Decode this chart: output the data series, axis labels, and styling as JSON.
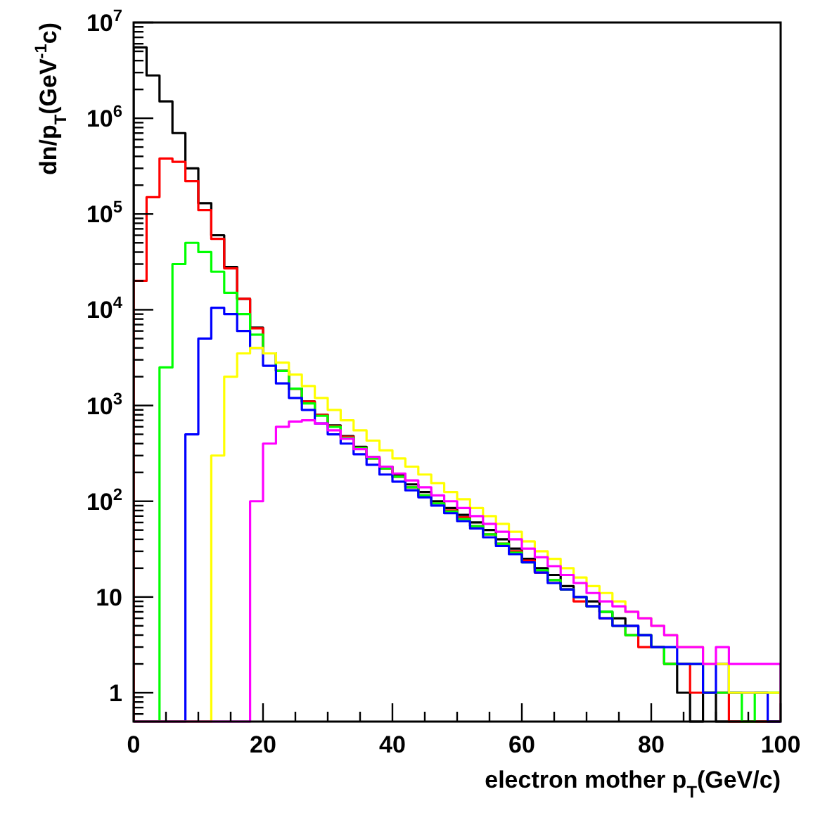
{
  "chart_data": {
    "type": "histogram",
    "xlabel": "electron mother p$_{T}$(GeV/c)",
    "ylabel": "dn/p$_{T}$(GeV$^{-1}$c)",
    "log": "y",
    "grid": false,
    "bins": [
      0,
      2,
      4,
      6,
      8,
      10,
      12,
      14,
      16,
      18,
      20,
      22,
      24,
      26,
      28,
      30,
      32,
      34,
      36,
      38,
      40,
      42,
      44,
      46,
      48,
      50,
      52,
      54,
      56,
      58,
      60,
      62,
      64,
      66,
      68,
      70,
      72,
      74,
      76,
      78,
      80,
      82,
      84,
      86,
      88,
      90,
      92,
      94,
      96,
      98,
      100
    ],
    "xlim": [
      0,
      100
    ],
    "xticks": [
      0,
      {
        "value": 5,
        "label": null
      },
      {
        "value": 10,
        "label": null
      },
      {
        "value": 15,
        "label": null
      },
      20,
      {
        "value": 25,
        "label": null
      },
      {
        "value": 30,
        "label": null
      },
      {
        "value": 35,
        "label": null
      },
      40,
      {
        "value": 45,
        "label": null
      },
      {
        "value": 50,
        "label": null
      },
      {
        "value": 55,
        "label": null
      },
      60,
      {
        "value": 65,
        "label": null
      },
      {
        "value": 70,
        "label": null
      },
      {
        "value": 75,
        "label": null
      },
      80,
      {
        "value": 85,
        "label": null
      },
      {
        "value": 90,
        "label": null
      },
      {
        "value": 95,
        "label": null
      },
      100
    ],
    "ylim": [
      0.5,
      10000000
    ],
    "yticks": [
      {
        "value": 0.6,
        "label": null
      },
      {
        "value": 0.7,
        "label": null
      },
      {
        "value": 0.8,
        "label": null
      },
      {
        "value": 0.9,
        "label": null
      },
      1,
      {
        "value": 2,
        "label": null
      },
      {
        "value": 3,
        "label": null
      },
      {
        "value": 4,
        "label": null
      },
      {
        "value": 5,
        "label": null
      },
      {
        "value": 6,
        "label": null
      },
      {
        "value": 7,
        "label": null
      },
      {
        "value": 8,
        "label": null
      },
      {
        "value": 9,
        "label": null
      },
      10,
      {
        "value": 20,
        "label": null
      },
      {
        "value": 30,
        "label": null
      },
      {
        "value": 40,
        "label": null
      },
      {
        "value": 50,
        "label": null
      },
      {
        "value": 60,
        "label": null
      },
      {
        "value": 70,
        "label": null
      },
      {
        "value": 80,
        "label": null
      },
      {
        "value": 90,
        "label": null
      },
      {
        "value": 100,
        "label": "10$^{2}$"
      },
      {
        "value": 200,
        "label": null
      },
      {
        "value": 300,
        "label": null
      },
      {
        "value": 400,
        "label": null
      },
      {
        "value": 500,
        "label": null
      },
      {
        "value": 600,
        "label": null
      },
      {
        "value": 700,
        "label": null
      },
      {
        "value": 800,
        "label": null
      },
      {
        "value": 900,
        "label": null
      },
      {
        "value": 1000,
        "label": "10$^{3}$"
      },
      {
        "value": 2000,
        "label": null
      },
      {
        "value": 3000,
        "label": null
      },
      {
        "value": 4000,
        "label": null
      },
      {
        "value": 5000,
        "label": null
      },
      {
        "value": 6000,
        "label": null
      },
      {
        "value": 7000,
        "label": null
      },
      {
        "value": 8000,
        "label": null
      },
      {
        "value": 9000,
        "label": null
      },
      {
        "value": 10000,
        "label": "10$^{4}$"
      },
      {
        "value": 20000,
        "label": null
      },
      {
        "value": 30000,
        "label": null
      },
      {
        "value": 40000,
        "label": null
      },
      {
        "value": 50000,
        "label": null
      },
      {
        "value": 60000,
        "label": null
      },
      {
        "value": 70000,
        "label": null
      },
      {
        "value": 80000,
        "label": null
      },
      {
        "value": 90000,
        "label": null
      },
      {
        "value": 100000,
        "label": "10$^{5}$"
      },
      {
        "value": 200000,
        "label": null
      },
      {
        "value": 300000,
        "label": null
      },
      {
        "value": 400000,
        "label": null
      },
      {
        "value": 500000,
        "label": null
      },
      {
        "value": 600000,
        "label": null
      },
      {
        "value": 700000,
        "label": null
      },
      {
        "value": 800000,
        "label": null
      },
      {
        "value": 900000,
        "label": null
      },
      {
        "value": 1000000,
        "label": "10$^{6}$"
      },
      {
        "value": 2000000,
        "label": null
      },
      {
        "value": 3000000,
        "label": null
      },
      {
        "value": 4000000,
        "label": null
      },
      {
        "value": 5000000,
        "label": null
      },
      {
        "value": 6000000,
        "label": null
      },
      {
        "value": 7000000,
        "label": null
      },
      {
        "value": 8000000,
        "label": null
      },
      {
        "value": 9000000,
        "label": null
      },
      {
        "value": 10000000,
        "label": "10$^{7}$"
      }
    ],
    "series": [
      {
        "color": "#000000",
        "values": [
          5500000,
          2800000,
          1500000,
          700000,
          300000,
          130000,
          60000,
          28000,
          13000,
          6500,
          3500,
          2300,
          1500,
          1100,
          800,
          620,
          480,
          370,
          290,
          230,
          190,
          150,
          125,
          100,
          85,
          72,
          60,
          50,
          40,
          32,
          25,
          20,
          17,
          13,
          10,
          9,
          7,
          6,
          5,
          4,
          3,
          2,
          1,
          null,
          1,
          null,
          null,
          null,
          null,
          null
        ]
      },
      {
        "color": "#ff0000",
        "values": [
          20000,
          150000,
          380000,
          350000,
          220000,
          110000,
          55000,
          27000,
          13000,
          6400,
          3500,
          2300,
          1500,
          1100,
          800,
          610,
          470,
          360,
          280,
          220,
          180,
          140,
          115,
          95,
          80,
          68,
          55,
          45,
          36,
          30,
          24,
          18,
          15,
          12,
          9,
          8,
          6,
          5,
          4,
          3,
          3,
          2,
          2,
          1,
          1,
          1,
          null,
          null,
          null,
          null
        ]
      },
      {
        "color": "#00ff00",
        "values": [
          null,
          null,
          2500,
          30000,
          50000,
          40000,
          25000,
          15000,
          9000,
          5500,
          3500,
          2300,
          1500,
          1050,
          780,
          600,
          460,
          360,
          280,
          220,
          180,
          140,
          115,
          95,
          78,
          65,
          55,
          45,
          36,
          29,
          23,
          19,
          15,
          12,
          10,
          8,
          7,
          5,
          4,
          4,
          3,
          2,
          2,
          2,
          1,
          1,
          1,
          null,
          1,
          1
        ]
      },
      {
        "color": "#0000ff",
        "values": [
          null,
          null,
          null,
          null,
          500,
          5000,
          10500,
          9000,
          6000,
          4000,
          2600,
          1700,
          1200,
          900,
          650,
          500,
          400,
          310,
          240,
          190,
          160,
          130,
          110,
          90,
          75,
          62,
          52,
          42,
          34,
          28,
          23,
          18,
          14,
          12,
          10,
          8,
          6,
          5,
          5,
          4,
          3,
          3,
          2,
          2,
          1,
          2,
          1,
          1,
          1,
          null
        ]
      },
      {
        "color": "#ffff00",
        "values": [
          null,
          null,
          null,
          null,
          null,
          null,
          300,
          2000,
          3500,
          4000,
          3500,
          2800,
          2100,
          1600,
          1200,
          900,
          700,
          550,
          430,
          340,
          280,
          230,
          190,
          155,
          125,
          105,
          85,
          70,
          58,
          48,
          38,
          30,
          25,
          20,
          16,
          13,
          11,
          9,
          7,
          6,
          5,
          4,
          3,
          3,
          2,
          2,
          1,
          1,
          1,
          1
        ]
      },
      {
        "color": "#ff00ff",
        "values": [
          null,
          null,
          null,
          null,
          null,
          null,
          null,
          null,
          null,
          100,
          400,
          600,
          680,
          700,
          650,
          550,
          450,
          350,
          290,
          230,
          195,
          165,
          140,
          115,
          100,
          85,
          70,
          58,
          48,
          40,
          32,
          26,
          21,
          17,
          14,
          11,
          9,
          8,
          7,
          6,
          5,
          4,
          3,
          3,
          2,
          3,
          2,
          2,
          2,
          2
        ]
      }
    ]
  }
}
